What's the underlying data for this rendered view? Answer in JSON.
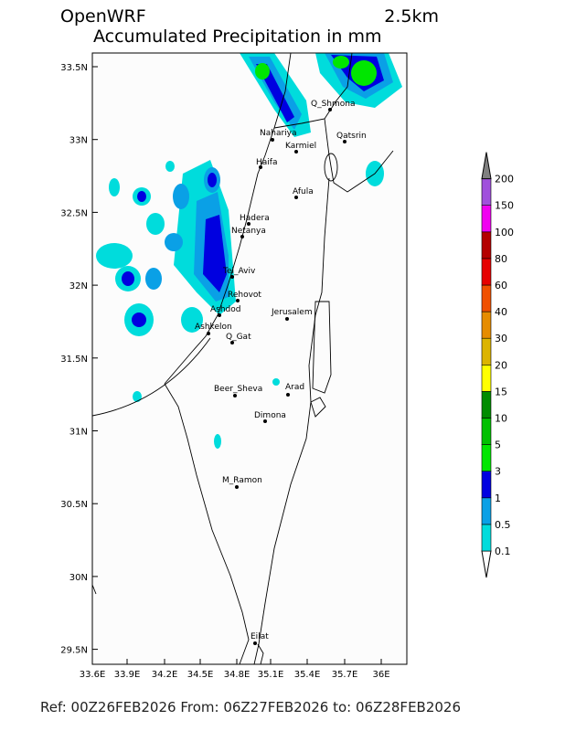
{
  "header": {
    "model": "OpenWRF",
    "resolution": "2.5km",
    "title": "Accumulated Precipitation in mm"
  },
  "map": {
    "xticks": [
      "33.6E",
      "33.9E",
      "34.2E",
      "34.5E",
      "34.8E",
      "35.1E",
      "35.4E",
      "35.7E",
      "36E"
    ],
    "yticks": [
      "33.5N",
      "33N",
      "32.5N",
      "32N",
      "31.5N",
      "31N",
      "30.5N",
      "30N",
      "29.5N"
    ],
    "cities": [
      "Q_Shmona",
      "Nahariya",
      "Karmiel",
      "Qatsrin",
      "Haifa",
      "Afula",
      "Hadera",
      "Netanya",
      "Tel_Aviv",
      "Rehovot",
      "Jerusalem",
      "Ashdod",
      "Ashkelon",
      "Q_Gat",
      "Beer_Sheva",
      "Arad",
      "Dimona",
      "M_Ramon",
      "Eilat"
    ]
  },
  "colorbar": {
    "levels": [
      "0.1",
      "0.5",
      "1",
      "3",
      "5",
      "10",
      "15",
      "20",
      "30",
      "40",
      "60",
      "80",
      "100",
      "150",
      "200"
    ],
    "colors": [
      "#00dcdc",
      "#0aa0e6",
      "#0000e0",
      "#00e600",
      "#00c000",
      "#008c00",
      "#ffff00",
      "#dcb400",
      "#e68c00",
      "#f05000",
      "#e60000",
      "#b40000",
      "#f000f0",
      "#a050dc",
      "#808080"
    ]
  },
  "footer": "Ref: 00Z26FEB2026  From: 06Z27FEB2026  to: 06Z28FEB2026"
}
